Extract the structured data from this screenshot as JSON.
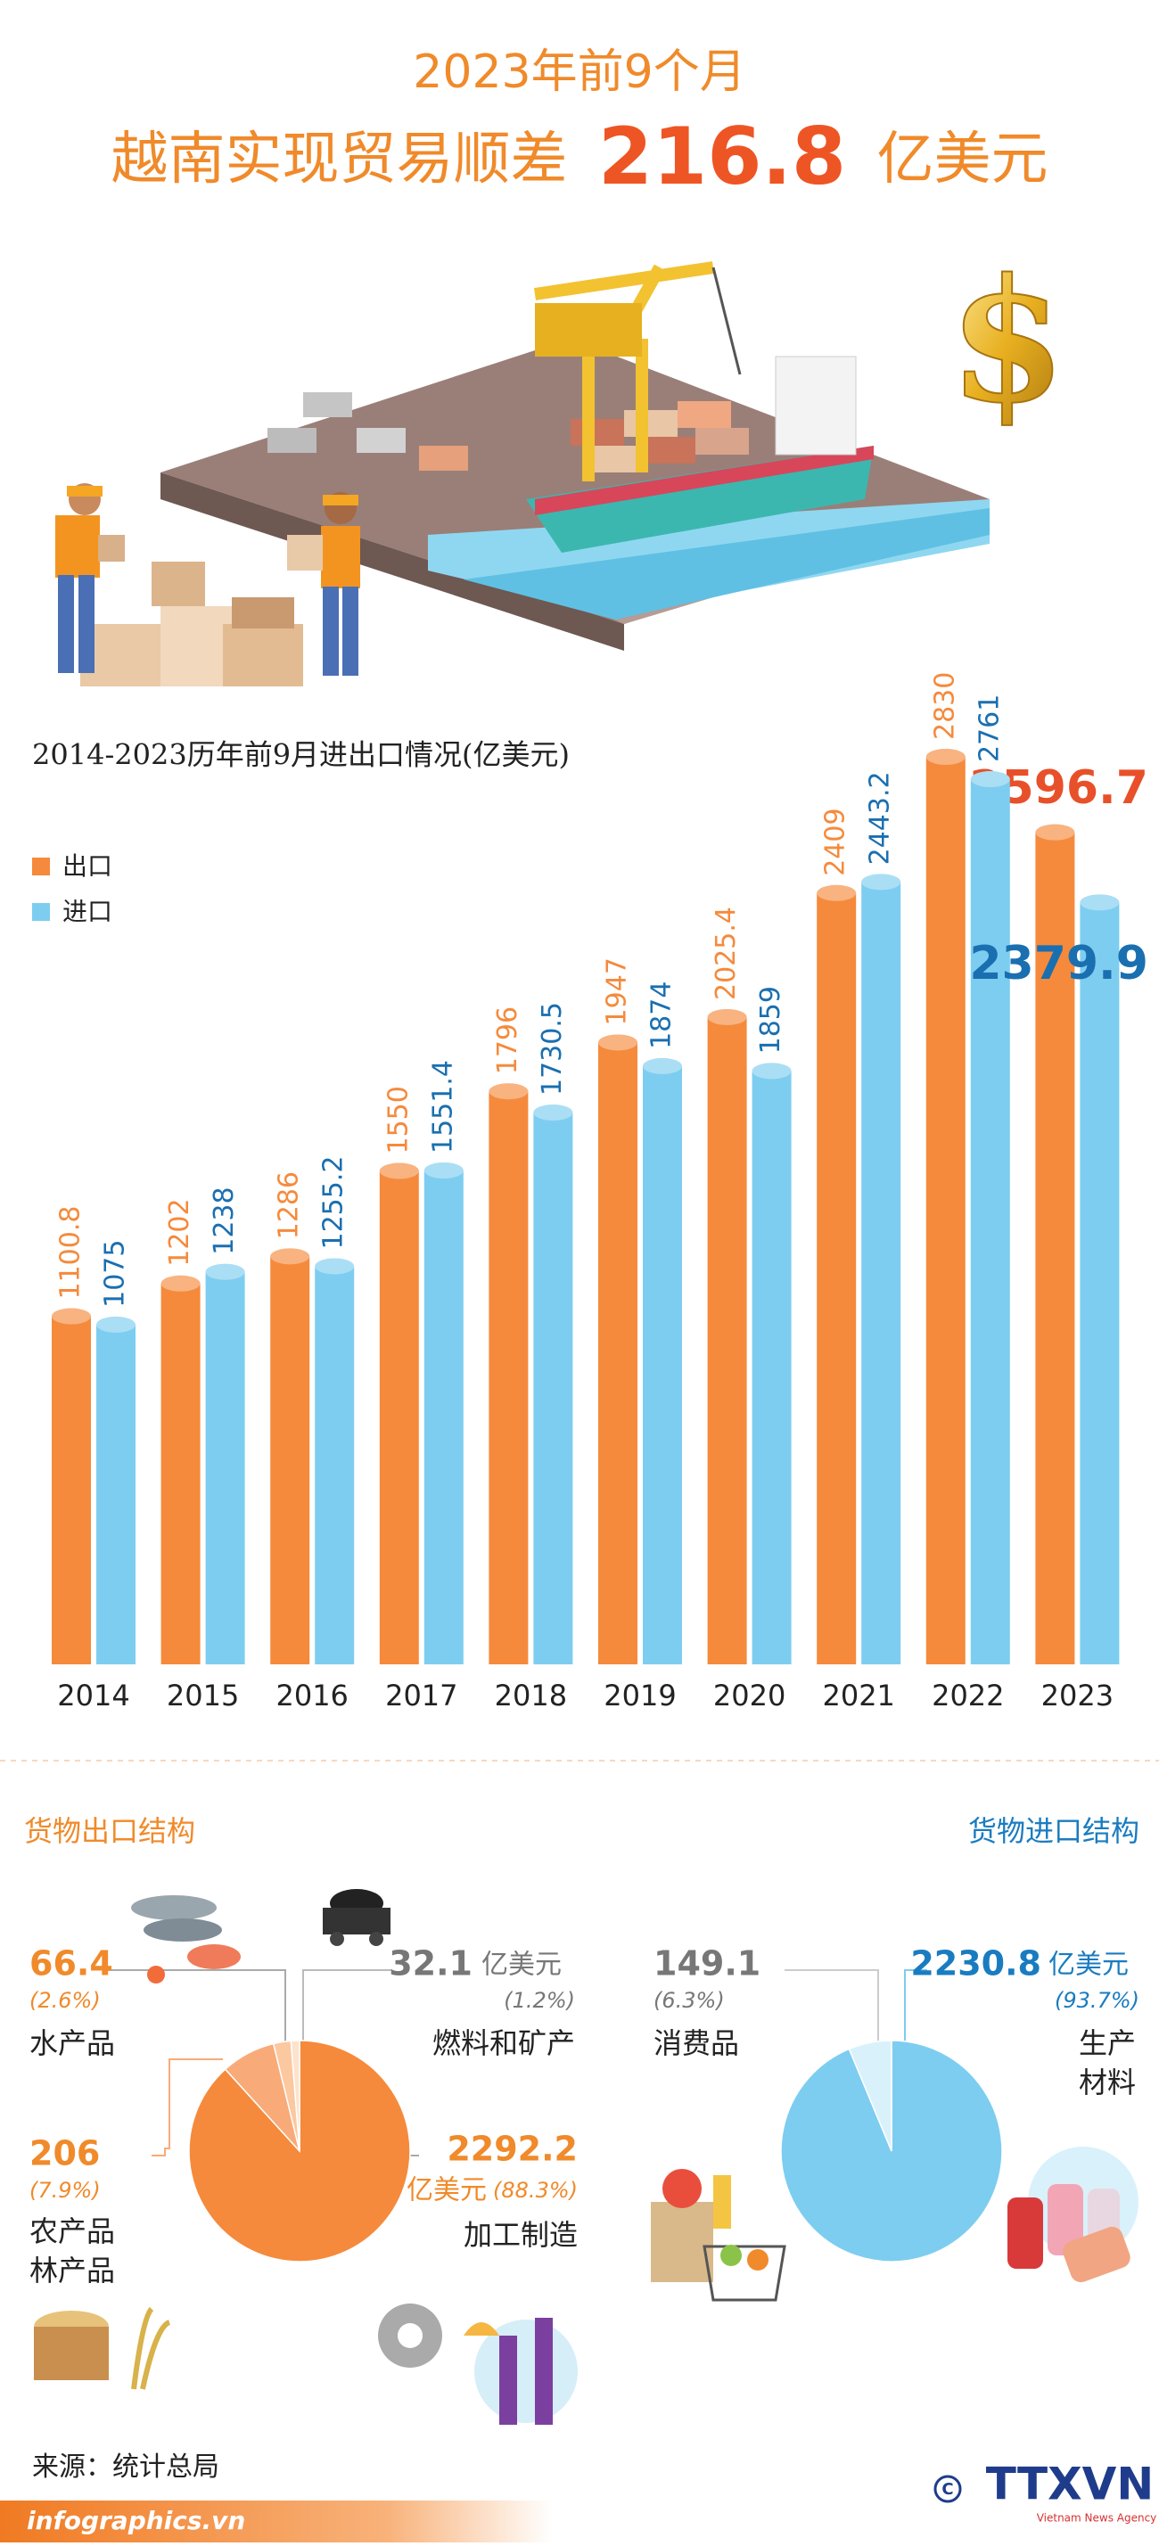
{
  "header": {
    "line1": "2023年前9个月",
    "line2": "越南实现贸易顺差",
    "highlight": 216.8,
    "unit": "亿美元"
  },
  "chart_data": [
    {
      "type": "bar",
      "title": "2014-2023历年前9月进出口情况(亿美元)",
      "categories": [
        "2014",
        "2015",
        "2016",
        "2017",
        "2018",
        "2019",
        "2020",
        "2021",
        "2022",
        "2023"
      ],
      "series": [
        {
          "name": "出口",
          "color": "#f58a3c",
          "values": [
            1100.8,
            1202,
            1286,
            1550,
            1796,
            1947,
            2025.4,
            2409,
            2830,
            2596.7
          ]
        },
        {
          "name": "进口",
          "color": "#7dcdf0",
          "values": [
            1075,
            1238,
            1255.2,
            1551.4,
            1730.5,
            1874,
            1859,
            2443.2,
            2761,
            2379.9
          ]
        }
      ]
    },
    {
      "type": "pie",
      "title": "货物出口结构",
      "unit": "亿美元",
      "categories": [
        "加工制造",
        "农产品林产品",
        "水产品",
        "燃料和矿产"
      ],
      "values": [
        2292.2,
        206,
        66.4,
        32.1
      ],
      "percent_labels": [
        "(88.3%)",
        "(7.9%)",
        "(2.6%)",
        "(1.2%)"
      ],
      "colors": [
        "#f58a3c",
        "#f8ab78",
        "#fbc8a0",
        "#fde2cc"
      ]
    },
    {
      "type": "pie",
      "title": "货物进口结构",
      "unit": "亿美元",
      "categories": [
        "生产材料",
        "消费品"
      ],
      "values": [
        2230.8,
        149.1
      ],
      "percent_labels": [
        "(93.7%)",
        "(6.3%)"
      ],
      "colors": [
        "#7dcdf0",
        "#d9f1fb"
      ]
    }
  ],
  "footer": {
    "source": "来源：统计总局",
    "site": "infographics.vn",
    "brand": "TTXVN",
    "brand_sub": "Vietnam News Agency"
  }
}
